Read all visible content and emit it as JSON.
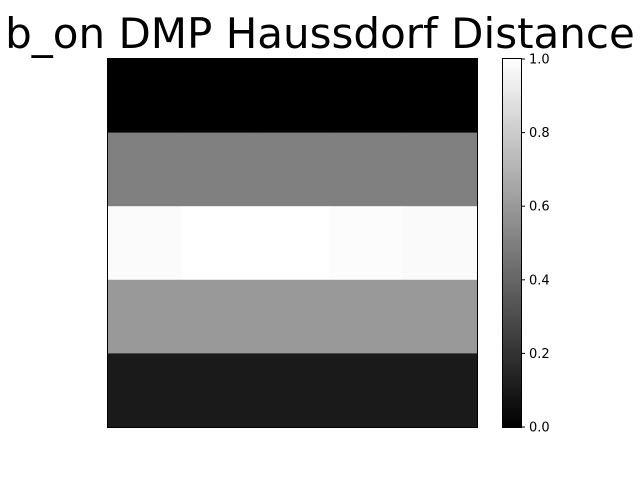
{
  "chart_data": {
    "type": "heatmap",
    "title": "b_on DMP Haussdorf Distance",
    "colormap": "gray",
    "ncols": 5,
    "rows": [
      [
        0.0,
        0.0,
        0.0,
        0.0,
        0.0
      ],
      [
        0.5,
        0.5,
        0.5,
        0.5,
        0.5
      ],
      [
        0.985,
        1.0,
        1.0,
        0.99,
        0.98
      ],
      [
        0.6,
        0.6,
        0.6,
        0.6,
        0.6
      ],
      [
        0.1,
        0.1,
        0.1,
        0.1,
        0.1
      ]
    ],
    "colorbar": {
      "vmin": 0.0,
      "vmax": 1.0,
      "ticks": [
        0.0,
        0.2,
        0.4,
        0.6,
        0.8,
        1.0
      ],
      "tick_labels": [
        "0.0",
        "0.2",
        "0.4",
        "0.6",
        "0.8",
        "1.0"
      ]
    },
    "axes_ticks_visible": false
  }
}
